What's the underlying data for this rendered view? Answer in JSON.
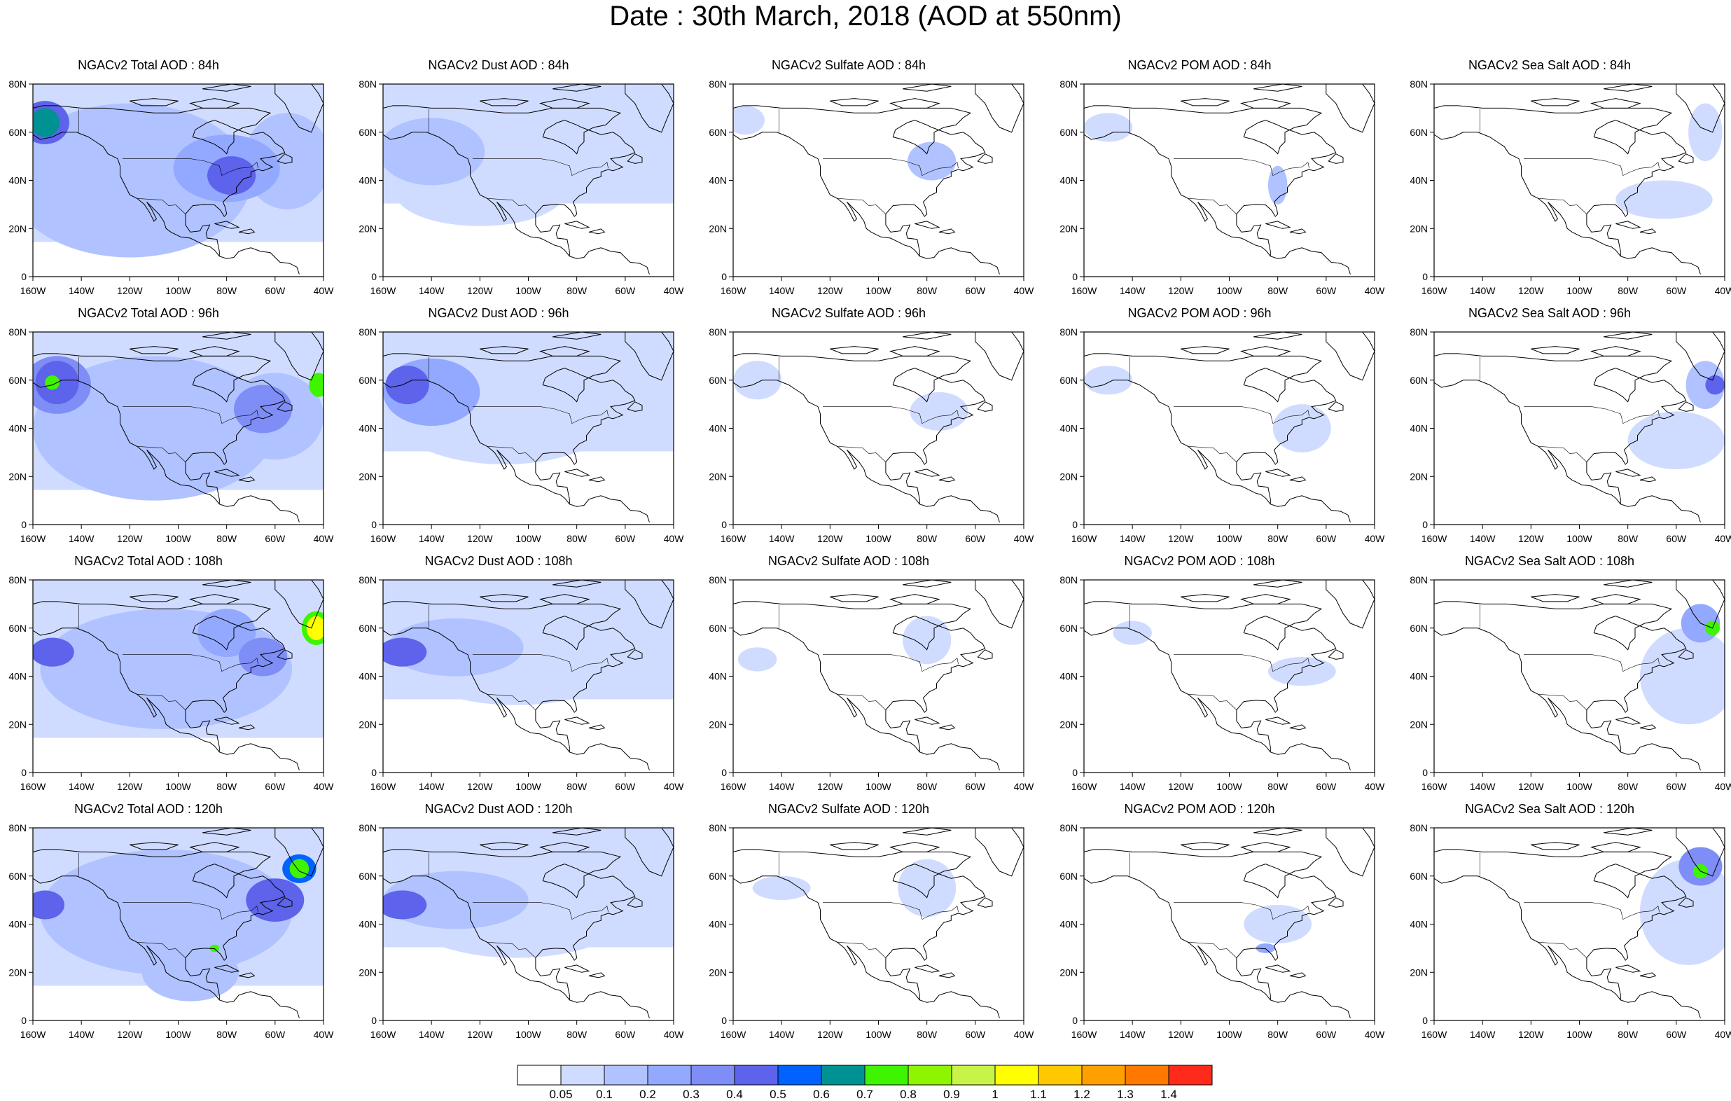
{
  "title": "Date : 30th March, 2018 (AOD at 550nm)",
  "colors": {
    "levels": [
      "#ffffff",
      "#d0dcff",
      "#b0c2ff",
      "#93a8ff",
      "#7f8df7",
      "#5d63ea",
      "#0063ff",
      "#009292",
      "#3ef400",
      "#8ef400",
      "#c8f44a",
      "#ffff00",
      "#ffc800",
      "#ffa000",
      "#ff7800",
      "#ff2a1a"
    ],
    "land_outline": "#000000",
    "border": "#000000"
  },
  "panels": [
    {
      "title": "NGACv2 Total AOD : 84h",
      "species": "total",
      "hour": 84
    },
    {
      "title": "NGACv2 Dust AOD : 84h",
      "species": "dust",
      "hour": 84
    },
    {
      "title": "NGACv2 Sulfate AOD : 84h",
      "species": "sulfate",
      "hour": 84
    },
    {
      "title": "NGACv2 POM AOD : 84h",
      "species": "pom",
      "hour": 84
    },
    {
      "title": "NGACv2 Sea Salt AOD : 84h",
      "species": "seasalt",
      "hour": 84
    },
    {
      "title": "NGACv2 Total AOD : 96h",
      "species": "total",
      "hour": 96
    },
    {
      "title": "NGACv2 Dust AOD : 96h",
      "species": "dust",
      "hour": 96
    },
    {
      "title": "NGACv2 Sulfate AOD : 96h",
      "species": "sulfate",
      "hour": 96
    },
    {
      "title": "NGACv2 POM AOD : 96h",
      "species": "pom",
      "hour": 96
    },
    {
      "title": "NGACv2 Sea Salt AOD : 96h",
      "species": "seasalt",
      "hour": 96
    },
    {
      "title": "NGACv2 Total AOD : 108h",
      "species": "total",
      "hour": 108
    },
    {
      "title": "NGACv2 Dust AOD : 108h",
      "species": "dust",
      "hour": 108
    },
    {
      "title": "NGACv2 Sulfate AOD : 108h",
      "species": "sulfate",
      "hour": 108
    },
    {
      "title": "NGACv2 POM AOD : 108h",
      "species": "pom",
      "hour": 108
    },
    {
      "title": "NGACv2 Sea Salt AOD : 108h",
      "species": "seasalt",
      "hour": 108
    },
    {
      "title": "NGACv2 Total AOD : 120h",
      "species": "total",
      "hour": 120
    },
    {
      "title": "NGACv2 Dust AOD : 120h",
      "species": "dust",
      "hour": 120
    },
    {
      "title": "NGACv2 Sulfate AOD : 120h",
      "species": "sulfate",
      "hour": 120
    },
    {
      "title": "NGACv2 POM AOD : 120h",
      "species": "pom",
      "hour": 120
    },
    {
      "title": "NGACv2 Sea Salt  AOD : 120h",
      "species": "seasalt",
      "hour": 120
    }
  ],
  "map": {
    "lon_ticks": [
      "160W",
      "140W",
      "120W",
      "100W",
      "80W",
      "60W",
      "40W"
    ],
    "lat_ticks": [
      "0",
      "20N",
      "40N",
      "60N",
      "80N"
    ],
    "lon_range": [
      -160,
      -40
    ],
    "lat_range": [
      0,
      80
    ]
  },
  "colorbar": {
    "labels": [
      "0.05",
      "0.1",
      "0.2",
      "0.3",
      "0.4",
      "0.5",
      "0.6",
      "0.7",
      "0.8",
      "0.9",
      "1",
      "1.1",
      "1.2",
      "1.3",
      "1.4"
    ]
  },
  "aod_fields": {
    "total": {
      "84": [
        {
          "lon": -155,
          "lat": 64,
          "rx": 6,
          "ry": 6,
          "level": 7
        },
        {
          "lon": -155,
          "lat": 64,
          "rx": 10,
          "ry": 9,
          "level": 5
        },
        {
          "lon": -120,
          "lat": 40,
          "rx": 50,
          "ry": 32,
          "level": 2
        },
        {
          "lon": -78,
          "lat": 42,
          "rx": 10,
          "ry": 8,
          "level": 5
        },
        {
          "lon": -80,
          "lat": 45,
          "rx": 22,
          "ry": 14,
          "level": 3
        },
        {
          "lon": -55,
          "lat": 48,
          "rx": 18,
          "ry": 20,
          "level": 2
        }
      ],
      "96": [
        {
          "lon": -152,
          "lat": 59,
          "rx": 3,
          "ry": 3,
          "level": 8
        },
        {
          "lon": -150,
          "lat": 59,
          "rx": 9,
          "ry": 9,
          "level": 5
        },
        {
          "lon": -150,
          "lat": 58,
          "rx": 14,
          "ry": 12,
          "level": 4
        },
        {
          "lon": -42,
          "lat": 58,
          "rx": 4,
          "ry": 5,
          "level": 8
        },
        {
          "lon": -65,
          "lat": 48,
          "rx": 12,
          "ry": 10,
          "level": 4
        },
        {
          "lon": -110,
          "lat": 40,
          "rx": 50,
          "ry": 30,
          "level": 2
        },
        {
          "lon": -60,
          "lat": 45,
          "rx": 20,
          "ry": 18,
          "level": 2
        }
      ],
      "108": [
        {
          "lon": -152,
          "lat": 50,
          "rx": 9,
          "ry": 6,
          "level": 5
        },
        {
          "lon": -43,
          "lat": 60,
          "rx": 4,
          "ry": 5,
          "level": 11
        },
        {
          "lon": -43,
          "lat": 60,
          "rx": 6,
          "ry": 7,
          "level": 8
        },
        {
          "lon": -65,
          "lat": 48,
          "rx": 10,
          "ry": 8,
          "level": 4
        },
        {
          "lon": -105,
          "lat": 43,
          "rx": 52,
          "ry": 25,
          "level": 2
        },
        {
          "lon": -80,
          "lat": 58,
          "rx": 12,
          "ry": 10,
          "level": 3
        }
      ],
      "120": [
        {
          "lon": -155,
          "lat": 48,
          "rx": 8,
          "ry": 6,
          "level": 5
        },
        {
          "lon": -50,
          "lat": 63,
          "rx": 4,
          "ry": 4,
          "level": 8
        },
        {
          "lon": -50,
          "lat": 63,
          "rx": 7,
          "ry": 6,
          "level": 6
        },
        {
          "lon": -85,
          "lat": 30,
          "rx": 2,
          "ry": 1.5,
          "level": 8
        },
        {
          "lon": -60,
          "lat": 50,
          "rx": 12,
          "ry": 9,
          "level": 5
        },
        {
          "lon": -105,
          "lat": 45,
          "rx": 52,
          "ry": 26,
          "level": 2
        },
        {
          "lon": -95,
          "lat": 20,
          "rx": 20,
          "ry": 12,
          "level": 2
        }
      ]
    },
    "dust": {
      "84": [
        {
          "lon": -140,
          "lat": 52,
          "rx": 22,
          "ry": 14,
          "level": 2
        },
        {
          "lon": -110,
          "lat": 55,
          "rx": 40,
          "ry": 22,
          "level": 1
        },
        {
          "lon": -120,
          "lat": 35,
          "rx": 35,
          "ry": 14,
          "level": 1
        }
      ],
      "96": [
        {
          "lon": -150,
          "lat": 58,
          "rx": 9,
          "ry": 8,
          "level": 5
        },
        {
          "lon": -140,
          "lat": 55,
          "rx": 20,
          "ry": 14,
          "level": 3
        },
        {
          "lon": -110,
          "lat": 50,
          "rx": 50,
          "ry": 25,
          "level": 1
        }
      ],
      "108": [
        {
          "lon": -152,
          "lat": 50,
          "rx": 10,
          "ry": 6,
          "level": 5
        },
        {
          "lon": -130,
          "lat": 52,
          "rx": 28,
          "ry": 12,
          "level": 2
        },
        {
          "lon": -105,
          "lat": 50,
          "rx": 50,
          "ry": 22,
          "level": 1
        }
      ],
      "120": [
        {
          "lon": -152,
          "lat": 48,
          "rx": 10,
          "ry": 6,
          "level": 5
        },
        {
          "lon": -130,
          "lat": 50,
          "rx": 30,
          "ry": 12,
          "level": 2
        },
        {
          "lon": -105,
          "lat": 48,
          "rx": 50,
          "ry": 22,
          "level": 1
        }
      ]
    },
    "sulfate": {
      "84": [
        {
          "lon": -155,
          "lat": 65,
          "rx": 8,
          "ry": 6,
          "level": 1
        },
        {
          "lon": -78,
          "lat": 48,
          "rx": 10,
          "ry": 8,
          "level": 2
        }
      ],
      "96": [
        {
          "lon": -150,
          "lat": 60,
          "rx": 10,
          "ry": 8,
          "level": 1
        },
        {
          "lon": -75,
          "lat": 47,
          "rx": 12,
          "ry": 8,
          "level": 1
        }
      ],
      "108": [
        {
          "lon": -150,
          "lat": 47,
          "rx": 8,
          "ry": 5,
          "level": 1
        },
        {
          "lon": -80,
          "lat": 55,
          "rx": 10,
          "ry": 10,
          "level": 1
        }
      ],
      "120": [
        {
          "lon": -140,
          "lat": 55,
          "rx": 12,
          "ry": 5,
          "level": 1
        },
        {
          "lon": -80,
          "lat": 55,
          "rx": 12,
          "ry": 12,
          "level": 1
        }
      ]
    },
    "pom": {
      "84": [
        {
          "lon": -150,
          "lat": 62,
          "rx": 10,
          "ry": 6,
          "level": 1
        },
        {
          "lon": -80,
          "lat": 38,
          "rx": 4,
          "ry": 8,
          "level": 2
        }
      ],
      "96": [
        {
          "lon": -150,
          "lat": 60,
          "rx": 10,
          "ry": 6,
          "level": 1
        },
        {
          "lon": -70,
          "lat": 40,
          "rx": 12,
          "ry": 10,
          "level": 1
        }
      ],
      "108": [
        {
          "lon": -140,
          "lat": 58,
          "rx": 8,
          "ry": 5,
          "level": 1
        },
        {
          "lon": -70,
          "lat": 42,
          "rx": 14,
          "ry": 6,
          "level": 1
        }
      ],
      "120": [
        {
          "lon": -85,
          "lat": 30,
          "rx": 4,
          "ry": 2,
          "level": 3
        },
        {
          "lon": -80,
          "lat": 40,
          "rx": 14,
          "ry": 8,
          "level": 1
        }
      ]
    },
    "seasalt": {
      "84": [
        {
          "lon": -48,
          "lat": 60,
          "rx": 7,
          "ry": 12,
          "level": 1
        },
        {
          "lon": -65,
          "lat": 32,
          "rx": 20,
          "ry": 8,
          "level": 1
        }
      ],
      "96": [
        {
          "lon": -44,
          "lat": 58,
          "rx": 4,
          "ry": 4,
          "level": 5
        },
        {
          "lon": -48,
          "lat": 58,
          "rx": 8,
          "ry": 10,
          "level": 2
        },
        {
          "lon": -60,
          "lat": 35,
          "rx": 20,
          "ry": 12,
          "level": 1
        }
      ],
      "108": [
        {
          "lon": -45,
          "lat": 60,
          "rx": 3,
          "ry": 3,
          "level": 8
        },
        {
          "lon": -50,
          "lat": 62,
          "rx": 8,
          "ry": 8,
          "level": 3
        },
        {
          "lon": -55,
          "lat": 40,
          "rx": 20,
          "ry": 20,
          "level": 1
        }
      ],
      "120": [
        {
          "lon": -50,
          "lat": 62,
          "rx": 3,
          "ry": 3,
          "level": 8
        },
        {
          "lon": -50,
          "lat": 64,
          "rx": 9,
          "ry": 8,
          "level": 4
        },
        {
          "lon": -55,
          "lat": 45,
          "rx": 20,
          "ry": 22,
          "level": 1
        }
      ]
    }
  }
}
